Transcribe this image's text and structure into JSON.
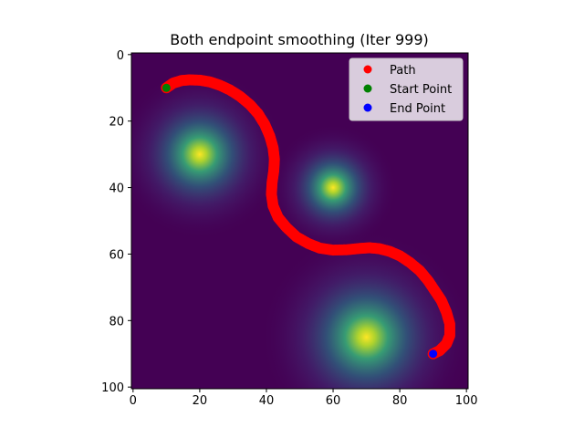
{
  "chart_data": {
    "type": "heatmap",
    "title": "Both endpoint smoothing (Iter 999)",
    "xlabel": "",
    "ylabel": "",
    "xlim": [
      0,
      100
    ],
    "ylim": [
      100,
      0
    ],
    "x_ticks": [
      0,
      20,
      40,
      60,
      80,
      100
    ],
    "y_ticks": [
      0,
      20,
      40,
      60,
      80,
      100
    ],
    "grid": false,
    "legend_position": "top-right",
    "colormap": "viridis",
    "background_color": "#440154",
    "heat_sources": [
      {
        "x": 20,
        "y": 30,
        "spread": 8
      },
      {
        "x": 60,
        "y": 40,
        "spread": 6
      },
      {
        "x": 70,
        "y": 85,
        "spread": 10
      }
    ],
    "series": [
      {
        "name": "Path",
        "color": "#ff0000",
        "marker": "circle",
        "points": [
          [
            10,
            10
          ],
          [
            12,
            8.6
          ],
          [
            14.5,
            7.8
          ],
          [
            17,
            7.6
          ],
          [
            20,
            7.7
          ],
          [
            23,
            8.2
          ],
          [
            26,
            9.2
          ],
          [
            29,
            10.6
          ],
          [
            32,
            12.5
          ],
          [
            35,
            15
          ],
          [
            37.5,
            17.8
          ],
          [
            39.5,
            21
          ],
          [
            41,
            24.5
          ],
          [
            42,
            28
          ],
          [
            42.4,
            31.5
          ],
          [
            42.2,
            35
          ],
          [
            41.7,
            38.5
          ],
          [
            41.5,
            42
          ],
          [
            42,
            45.5
          ],
          [
            43.5,
            49
          ],
          [
            46,
            52
          ],
          [
            49,
            54.8
          ],
          [
            52.5,
            56.8
          ],
          [
            56,
            58.2
          ],
          [
            60,
            58.8
          ],
          [
            64,
            58.7
          ],
          [
            68,
            58.3
          ],
          [
            71,
            58.1
          ],
          [
            74,
            58.4
          ],
          [
            77,
            59.2
          ],
          [
            80,
            60.5
          ],
          [
            83,
            62.5
          ],
          [
            86,
            65
          ],
          [
            88.5,
            68
          ],
          [
            90.5,
            71
          ],
          [
            92.5,
            74
          ],
          [
            94,
            77.5
          ],
          [
            95,
            81
          ],
          [
            95,
            84.5
          ],
          [
            94,
            87
          ],
          [
            92,
            89
          ],
          [
            90,
            90
          ]
        ]
      },
      {
        "name": "Start Point",
        "color": "#008000",
        "marker": "circle",
        "points": [
          [
            10,
            10
          ]
        ]
      },
      {
        "name": "End Point",
        "color": "#0000ff",
        "marker": "circle",
        "points": [
          [
            90,
            90
          ]
        ]
      }
    ]
  }
}
